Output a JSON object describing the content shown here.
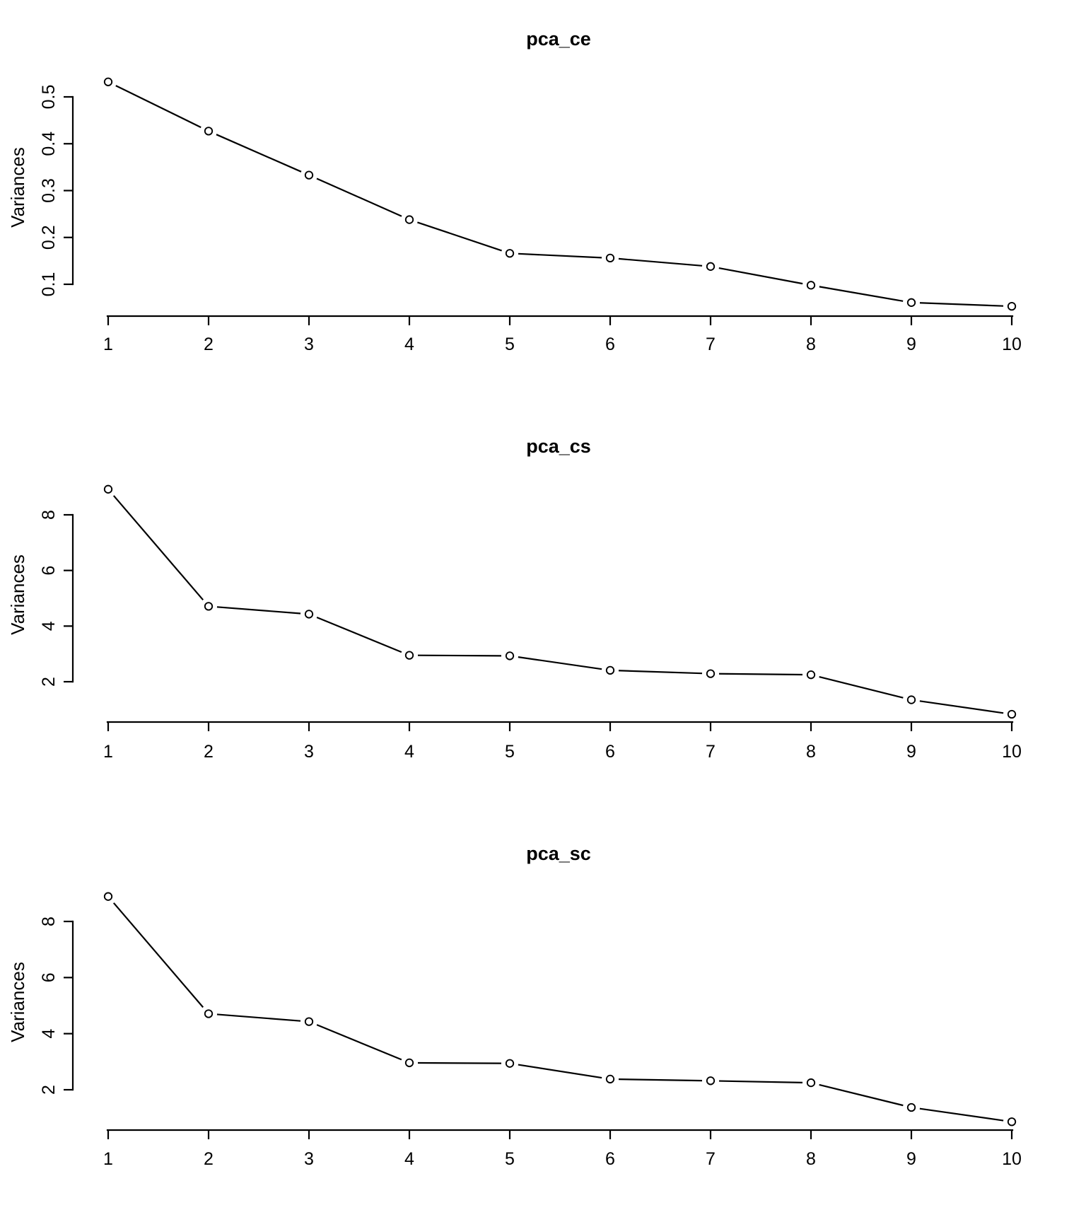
{
  "figure": {
    "background_color": "#ffffff",
    "ink_color": "#000000",
    "marker": "open-circle",
    "plot_type": "points-and-lines"
  },
  "chart_data": [
    {
      "type": "line",
      "title": "pca_ce",
      "xlabel": "",
      "ylabel": "Variances",
      "x": [
        1,
        2,
        3,
        4,
        5,
        6,
        7,
        8,
        9,
        10
      ],
      "x_tick_labels": [
        "1",
        "2",
        "3",
        "4",
        "5",
        "6",
        "7",
        "8",
        "9",
        "10"
      ],
      "values": [
        0.532,
        0.427,
        0.333,
        0.238,
        0.166,
        0.156,
        0.138,
        0.098,
        0.061,
        0.053
      ],
      "y_ticks": [
        0.1,
        0.2,
        0.3,
        0.4,
        0.5
      ],
      "y_tick_labels": [
        "0.1",
        "0.2",
        "0.3",
        "0.4",
        "0.5"
      ],
      "ylim": [
        0.053,
        0.532
      ],
      "grid": false,
      "legend": null
    },
    {
      "type": "line",
      "title": "pca_cs",
      "xlabel": "",
      "ylabel": "Variances",
      "x": [
        1,
        2,
        3,
        4,
        5,
        6,
        7,
        8,
        9,
        10
      ],
      "x_tick_labels": [
        "1",
        "2",
        "3",
        "4",
        "5",
        "6",
        "7",
        "8",
        "9",
        "10"
      ],
      "values": [
        8.92,
        4.71,
        4.43,
        2.95,
        2.93,
        2.41,
        2.29,
        2.25,
        1.35,
        0.83
      ],
      "y_ticks": [
        2,
        4,
        6,
        8
      ],
      "y_tick_labels": [
        "2",
        "4",
        "6",
        "8"
      ],
      "ylim": [
        0.83,
        8.92
      ],
      "grid": false,
      "legend": null
    },
    {
      "type": "line",
      "title": "pca_sc",
      "xlabel": "",
      "ylabel": "Variances",
      "x": [
        1,
        2,
        3,
        4,
        5,
        6,
        7,
        8,
        9,
        10
      ],
      "x_tick_labels": [
        "1",
        "2",
        "3",
        "4",
        "5",
        "6",
        "7",
        "8",
        "9",
        "10"
      ],
      "values": [
        8.89,
        4.71,
        4.43,
        2.96,
        2.94,
        2.38,
        2.32,
        2.25,
        1.37,
        0.86
      ],
      "y_ticks": [
        2,
        4,
        6,
        8
      ],
      "y_tick_labels": [
        "2",
        "4",
        "6",
        "8"
      ],
      "ylim": [
        0.86,
        8.89
      ],
      "grid": false,
      "legend": null
    }
  ]
}
